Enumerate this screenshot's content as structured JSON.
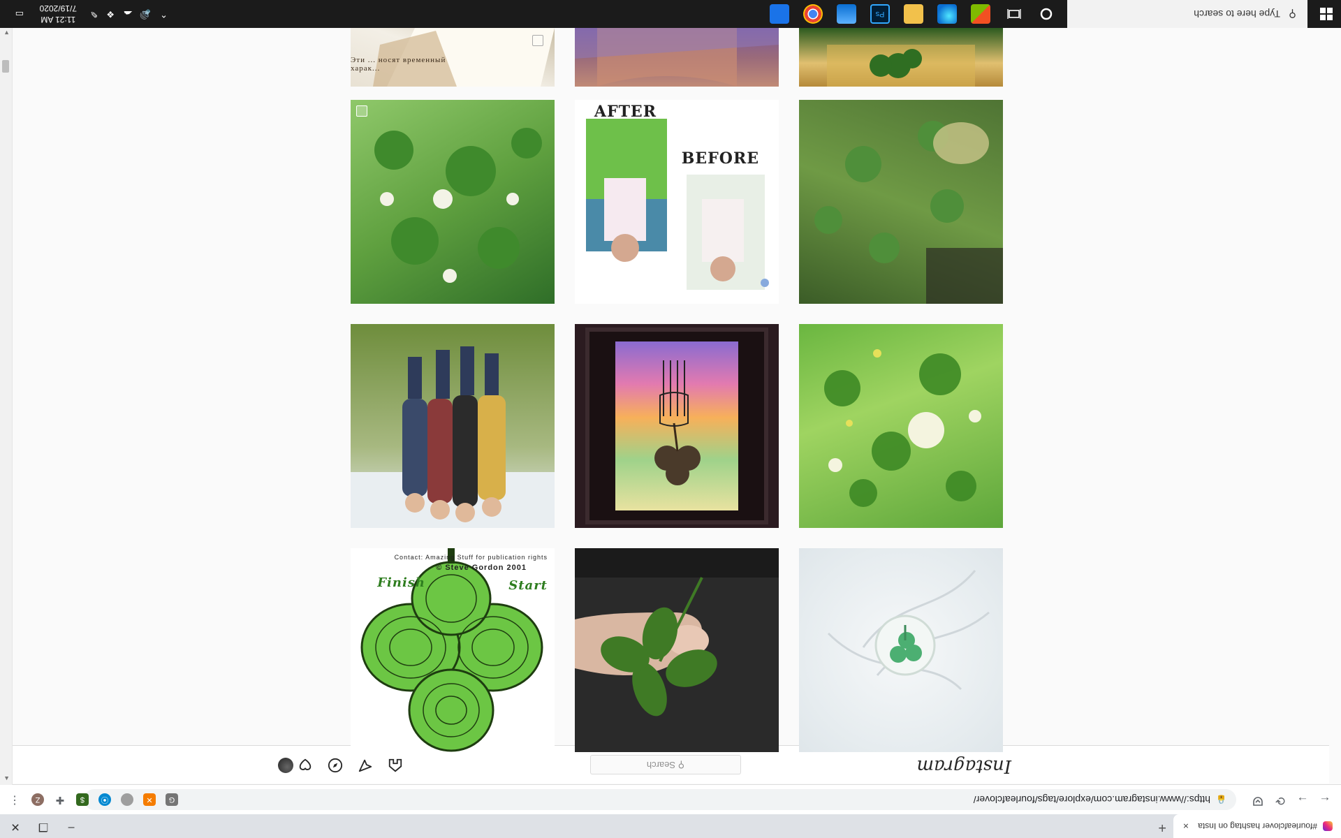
{
  "browser": {
    "tab_title": "#fourleafclover hashtag on Insta",
    "tab_close": "×",
    "new_tab": "+",
    "url": "https://www.instagram.com/explore/tags/fourleafclover/",
    "nav": {
      "back": "←",
      "forward": "→",
      "reload": "⟳"
    },
    "extensions": [
      "pocket-icon",
      "shield-icon",
      "circle-icon",
      "blue-icon",
      "ai-icon",
      "puzzle-icon"
    ],
    "profile_initial": "Z",
    "menu": "⋮",
    "window": {
      "minimize": "–",
      "maximize": "❐",
      "close": "✕"
    }
  },
  "instagram": {
    "logo": "Instagram",
    "search_placeholder": "Search",
    "nav_icons": [
      "home-icon",
      "direct-icon",
      "explore-icon",
      "activity-icon",
      "profile-icon"
    ]
  },
  "grid": {
    "columns": 3,
    "tiles": [
      {
        "name": "sticky-clover",
        "colors": [
          "#e9eef2",
          "#ffffff"
        ]
      },
      {
        "name": "clover-finger",
        "colors": [
          "#2c2c2c",
          "#4a7a2a"
        ]
      },
      {
        "name": "clover-maze",
        "colors": [
          "#ffffff",
          "#5cc43a"
        ]
      },
      {
        "name": "clover-field-white-flowers",
        "colors": [
          "#2f7a1f",
          "#8ccf55"
        ]
      },
      {
        "name": "clover-watercolor-frame",
        "colors": [
          "#2a1a1a",
          "#d8a8d0"
        ]
      },
      {
        "name": "friends-hugging",
        "colors": [
          "#e8ecef",
          "#6e8d3c"
        ]
      },
      {
        "name": "clover-patch-dirt",
        "colors": [
          "#3d5c2a",
          "#7a9a4a"
        ]
      },
      {
        "name": "before-after-girl",
        "colors": [
          "#ffffff",
          "#5aa07a"
        ]
      },
      {
        "name": "clover-patch-green",
        "colors": [
          "#2f6e28",
          "#7fbf5a"
        ]
      },
      {
        "name": "clover-gold-frame",
        "colors": [
          "#c9a64a",
          "#2c5a1e"
        ]
      },
      {
        "name": "hand-and-clover",
        "colors": [
          "#7b4a8a",
          "#c8846a"
        ]
      },
      {
        "name": "russian-text-note",
        "colors": [
          "#e8e2d6",
          "#b8a88a"
        ]
      }
    ],
    "maze_text": {
      "start": "Start",
      "finish": "Finish",
      "credit": "© Steve Gordon 2001",
      "credit_note": "Contact: Amazing Stuff for publication rights"
    },
    "before_after": {
      "before": "BEFORE",
      "after": "AFTER"
    },
    "russian_snippet": "Эти ... носят временный харак..."
  },
  "taskbar": {
    "search_placeholder": "Type here to search",
    "time": "11:21 AM",
    "date": "7/19/2020",
    "apps": [
      "cortana-icon",
      "taskview-icon",
      "store-icon",
      "edge-icon",
      "file-explorer-icon",
      "photoshop-icon",
      "onedrive-icon",
      "chrome-icon",
      "settings-icon"
    ]
  }
}
